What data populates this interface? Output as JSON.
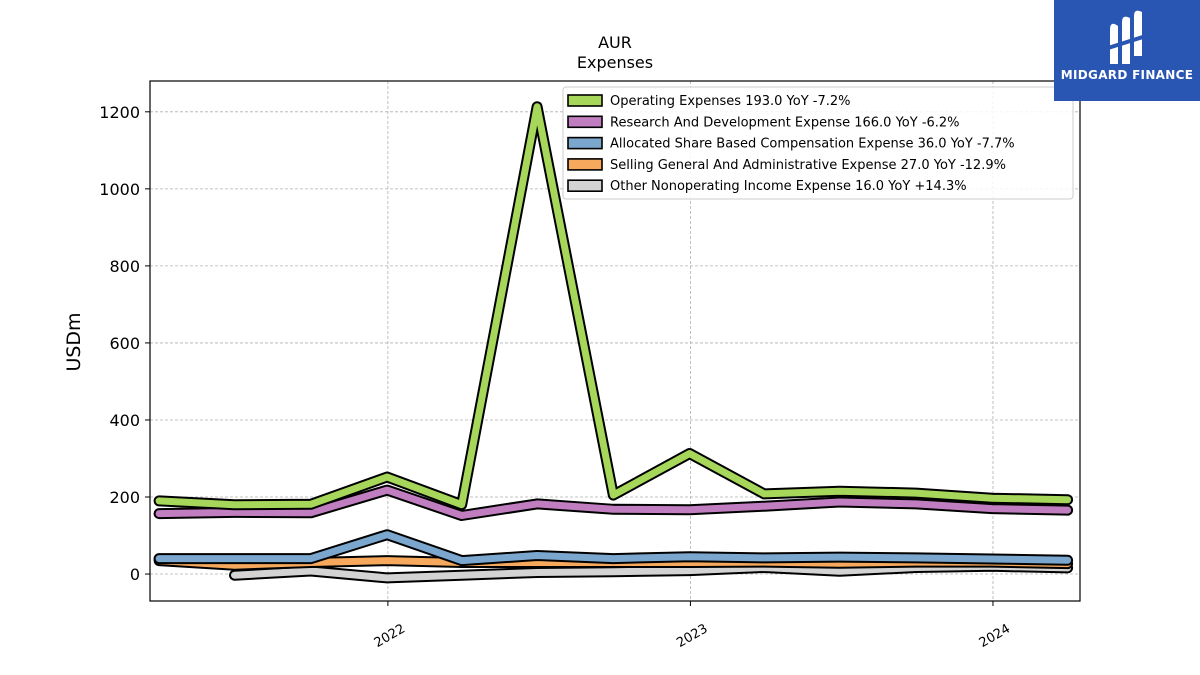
{
  "logo": {
    "text": "MIDGARD FINANCE"
  },
  "chart_data": {
    "type": "line",
    "title": "AUR",
    "subtitle": "Expenses",
    "ylabel": "USDm",
    "ylim": [
      -70,
      1280
    ],
    "yticks": [
      0,
      200,
      400,
      600,
      800,
      1000,
      1200
    ],
    "xlim": [
      "2021-03-20",
      "2024-04-15"
    ],
    "xticks": [
      {
        "label": "2022",
        "date": "2022-01-01"
      },
      {
        "label": "2023",
        "date": "2023-01-01"
      },
      {
        "label": "2024",
        "date": "2024-01-01"
      }
    ],
    "grid": true,
    "legend_position": "top-right",
    "x": [
      "2021-03-31",
      "2021-06-30",
      "2021-09-30",
      "2021-12-31",
      "2022-03-31",
      "2022-06-30",
      "2022-09-30",
      "2022-12-31",
      "2023-03-31",
      "2023-06-30",
      "2023-09-30",
      "2023-12-31",
      "2024-03-31"
    ],
    "series": [
      {
        "name": "Operating Expenses",
        "legend": "Operating Expenses  193.0 YoY -7.2%",
        "color": "#a6d75b",
        "values": [
          190,
          180,
          181,
          252,
          180,
          1213,
          205,
          313,
          208,
          215,
          210,
          197,
          193
        ]
      },
      {
        "name": "Research And Development Expense",
        "legend": "Research And Development Expense  166.0 YoY -6.2%",
        "color": "#c07ec0",
        "values": [
          157,
          160,
          159,
          218,
          152,
          182,
          168,
          167,
          176,
          187,
          182,
          170,
          166
        ]
      },
      {
        "name": "Allocated Share Based Compensation Expense",
        "legend": "Allocated Share Based Compensation Expense  36.0 YoY -7.7%",
        "color": "#7ba7ce",
        "values": [
          40,
          40,
          40,
          102,
          35,
          48,
          40,
          45,
          42,
          44,
          42,
          39,
          36
        ]
      },
      {
        "name": "Selling General And Administrative Expense",
        "legend": "Selling General And Administrative Expense  27.0 YoY -12.9%",
        "color": "#f6a95c",
        "values": [
          35,
          23,
          30,
          35,
          30,
          30,
          30,
          30,
          31,
          28,
          31,
          31,
          27
        ]
      },
      {
        "name": "Other Nonoperating Income Expense",
        "legend": "Other Nonoperating Income Expense  16.0 YoY +14.3%",
        "color": "#d3d3d3",
        "values": [
          null,
          -3,
          8,
          -10,
          -3,
          4,
          6,
          9,
          17,
          7,
          17,
          20,
          16
        ]
      }
    ]
  }
}
